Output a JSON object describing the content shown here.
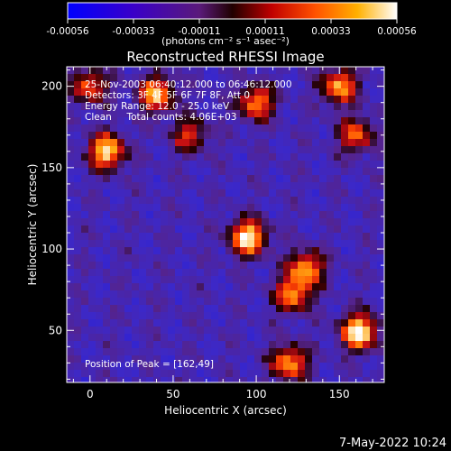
{
  "chart_data": {
    "type": "heatmap",
    "title": "Reconstructed RHESSI Image",
    "xlabel": "Heliocentric X (arcsec)",
    "ylabel": "Heliocentric Y (arcsec)",
    "xlim": [
      -14,
      177
    ],
    "ylim": [
      18,
      212
    ],
    "x_ticks": [
      0,
      50,
      100,
      150
    ],
    "y_ticks": [
      50,
      100,
      150,
      200
    ],
    "colorbar": {
      "ticks": [
        -0.00056,
        -0.00033,
        -0.00011,
        0.00011,
        0.00033,
        0.00056
      ],
      "tick_labels": [
        "-0.00056",
        "-0.00033",
        "-0.00011",
        "0.00011",
        "0.00033",
        "0.00056"
      ],
      "units": "(photons cm⁻² s⁻¹ asec⁻²)",
      "range": [
        -0.00056,
        0.00056
      ]
    },
    "annotations": [
      "25-Nov-2003 06:40:12.000 to 06:46:12.000",
      "Detectors: 3F 4F 5F 6F 7F 8F, Att 0",
      "Energy Range: 12.0 - 25.0 keV",
      "Clean     Total counts: 4.06E+03"
    ],
    "peak_label": "Position of Peak = [162,49]",
    "peak": [
      162,
      49
    ],
    "sources": [
      {
        "x": 162,
        "y": 49,
        "amp": 1.0
      },
      {
        "x": 95,
        "y": 107,
        "amp": 0.95
      },
      {
        "x": 130,
        "y": 88,
        "amp": 0.75
      },
      {
        "x": 122,
        "y": 72,
        "amp": 0.7
      },
      {
        "x": 10,
        "y": 160,
        "amp": 0.9
      },
      {
        "x": 40,
        "y": 195,
        "amp": 0.8
      },
      {
        "x": 100,
        "y": 190,
        "amp": 0.7
      },
      {
        "x": 150,
        "y": 200,
        "amp": 0.75
      },
      {
        "x": 160,
        "y": 170,
        "amp": 0.6
      },
      {
        "x": 120,
        "y": 30,
        "amp": 0.75
      },
      {
        "x": 60,
        "y": 170,
        "amp": 0.5
      },
      {
        "x": 0,
        "y": 200,
        "amp": 0.6
      }
    ],
    "footer_date": "7-May-2022 10:24"
  }
}
